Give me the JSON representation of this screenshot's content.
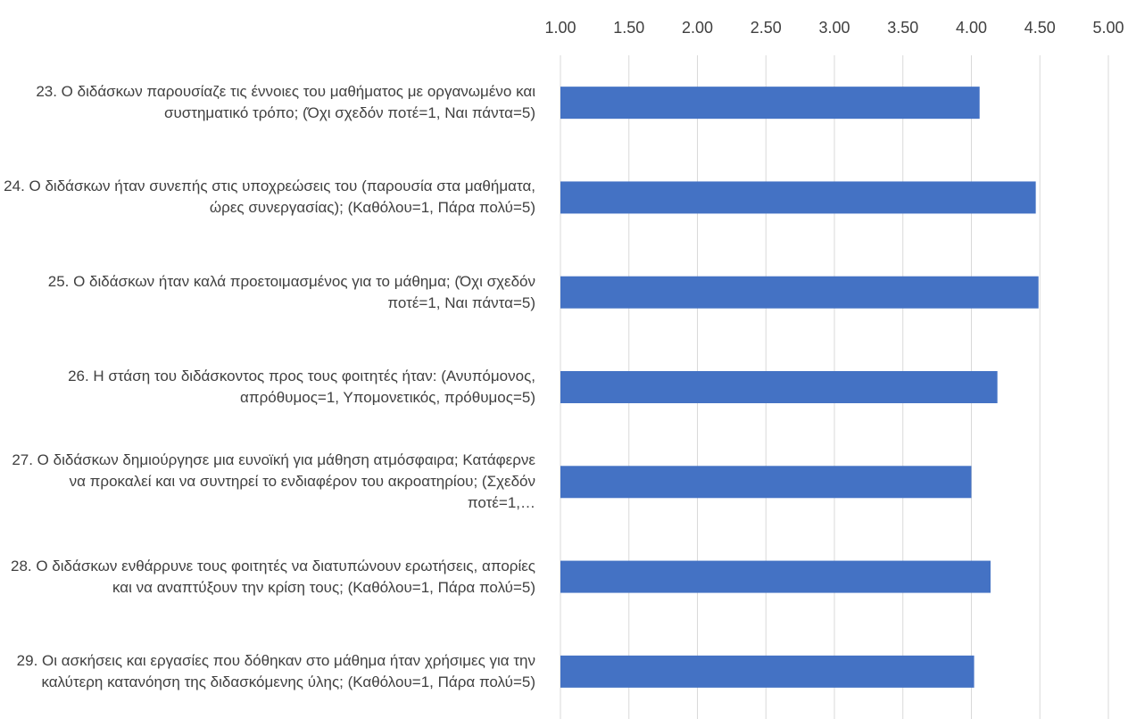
{
  "chart_data": {
    "type": "barh",
    "categories": [
      "23. Ο διδάσκων παρουσίαζε τις έννοιες του μαθήματος με οργανωμένο και συστηματικό τρόπο; (Όχι σχεδόν ποτέ=1, Ναι πάντα=5)",
      "24. Ο διδάσκων ήταν συνεπής στις υποχρεώσεις του (παρουσία στα μαθήματα, ώρες συνεργασίας); (Καθόλου=1, Πάρα πολύ=5)",
      "25. Ο διδάσκων ήταν καλά προετοιμασμένος για το μάθημα;  (Όχι σχεδόν ποτέ=1, Ναι πάντα=5)",
      "26. Η στάση του διδάσκοντος προς τους φοιτητές ήταν: (Ανυπόμονος, απρόθυμος=1, Υπομονετικός, πρόθυμος=5)",
      "27. Ο διδάσκων δημιούργησε μια ευνοϊκή για μάθηση ατμόσφαιρα; Κατάφερνε να προκαλεί και να συντηρεί το ενδιαφέρον του ακροατηρίου; (Σχεδόν ποτέ=1,…",
      "28. Ο διδάσκων ενθάρρυνε τους φοιτητές να διατυπώνουν ερωτήσεις, απορίες και να αναπτύξουν την κρίση τους; (Καθόλου=1, Πάρα πολύ=5)",
      "29. Οι ασκήσεις και εργασίες που δόθηκαν στο μάθημα ήταν χρήσιμες για την καλύτερη κατανόηση της διδασκόμενης ύλης;  (Καθόλου=1, Πάρα πολύ=5)"
    ],
    "values": [
      4.06,
      4.47,
      4.49,
      4.19,
      4.0,
      4.14,
      4.02
    ],
    "color": "#4472c4",
    "xlim": [
      1,
      5
    ],
    "xticks": [
      {
        "value": 1,
        "label": "1.00"
      },
      {
        "value": 1.5,
        "label": "1.50"
      },
      {
        "value": 2,
        "label": "2.00"
      },
      {
        "value": 2.5,
        "label": "2.50"
      },
      {
        "value": 3,
        "label": "3.00"
      },
      {
        "value": 3.5,
        "label": "3.50"
      },
      {
        "value": 4,
        "label": "4.00"
      },
      {
        "value": 4.5,
        "label": "4.50"
      },
      {
        "value": 5,
        "label": "5.00"
      }
    ],
    "grid": true
  }
}
